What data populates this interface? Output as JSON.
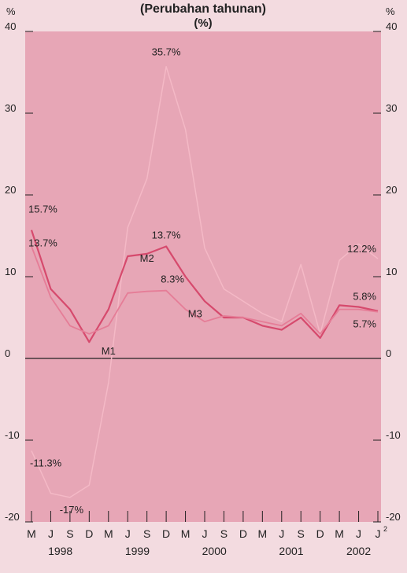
{
  "chart_data": {
    "type": "line",
    "title": "(Perubahan tahunan)",
    "subtitle": "(%)",
    "ylabel_left": "%",
    "ylabel_right": "%",
    "ylim": [
      -20,
      40
    ],
    "yticks": [
      -20,
      -10,
      0,
      10,
      20,
      30,
      40
    ],
    "x_months": [
      "M",
      "J",
      "S",
      "D",
      "M",
      "J",
      "S",
      "D",
      "M",
      "J",
      "S",
      "D",
      "M",
      "J",
      "S",
      "D",
      "M",
      "J",
      "J"
    ],
    "x_last_superscript": "2",
    "x_years": [
      {
        "label": "1998",
        "center_index": 1.5
      },
      {
        "label": "1999",
        "center_index": 5.5
      },
      {
        "label": "2000",
        "center_index": 9.5
      },
      {
        "label": "2001",
        "center_index": 13.5
      },
      {
        "label": "2002",
        "center_index": 17.0
      }
    ],
    "colors": {
      "plot_bg": "#e7a6b6",
      "page_bg": "#f3dbe0",
      "M1": "#f4b9c6",
      "M2": "#d64a6d",
      "M3": "#e57d97",
      "zero_line": "#222222",
      "text": "#222222"
    },
    "series": [
      {
        "name": "M1",
        "values": [
          -11.3,
          -16.5,
          -17,
          -15.5,
          -3,
          16,
          22,
          35.7,
          28,
          13.5,
          8.5,
          7,
          5.5,
          4.5,
          11.5,
          3,
          12,
          14,
          12.2
        ]
      },
      {
        "name": "M2",
        "values": [
          15.7,
          8.5,
          6,
          2,
          6,
          12.5,
          12.8,
          13.7,
          10,
          7,
          5,
          5,
          4,
          3.5,
          5,
          2.5,
          6.5,
          6.3,
          5.8
        ]
      },
      {
        "name": "M3",
        "values": [
          13.7,
          7.5,
          4,
          3,
          4,
          8,
          8.2,
          8.3,
          6,
          4.5,
          5.2,
          5,
          4.5,
          4,
          5.5,
          3,
          6,
          6,
          5.7
        ]
      }
    ],
    "annotations": [
      {
        "text": "35.7%",
        "series": "M1",
        "index": 7
      },
      {
        "text": "-11.3%",
        "series": "M1",
        "index": 0
      },
      {
        "text": "-17%",
        "series": "M1",
        "index": 2
      },
      {
        "text": "12.2%",
        "series": "M1",
        "index": 18
      },
      {
        "text": "15.7%",
        "series": "M2",
        "index": 0
      },
      {
        "text": "13.7%",
        "series": "M2",
        "index": 7
      },
      {
        "text": "5.8%",
        "series": "M2",
        "index": 18
      },
      {
        "text": "13.7%",
        "series": "M3",
        "index": 0
      },
      {
        "text": "8.3%",
        "series": "M3",
        "index": 7
      },
      {
        "text": "5.7%",
        "series": "M3",
        "index": 18
      }
    ],
    "series_labels": [
      {
        "text": "M1",
        "series": "M1"
      },
      {
        "text": "M2",
        "series": "M2"
      },
      {
        "text": "M3",
        "series": "M3"
      }
    ]
  }
}
